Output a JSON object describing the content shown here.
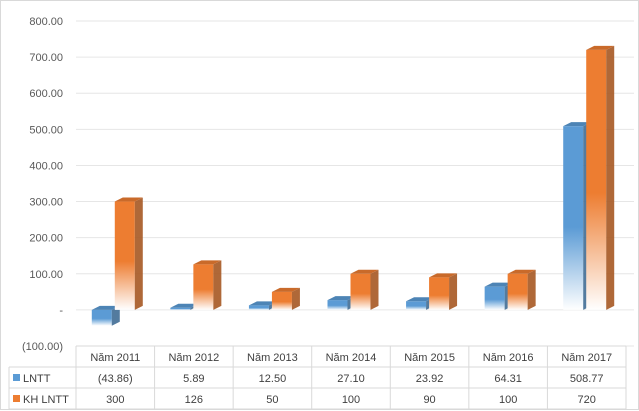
{
  "chart_data": {
    "type": "bar",
    "style": "3d-clustered-column-with-data-table",
    "categories": [
      "Năm 2011",
      "Năm 2012",
      "Năm 2013",
      "Năm 2014",
      "Năm 2015",
      "Năm 2016",
      "Năm 2017"
    ],
    "series": [
      {
        "name": "LNTT",
        "values": [
          -43.86,
          5.89,
          12.5,
          27.1,
          23.92,
          64.31,
          508.77
        ],
        "labels": [
          "(43.86)",
          "5.89",
          "12.50",
          "27.10",
          "23.92",
          "64.31",
          "508.77"
        ],
        "color": "#5b9bd5"
      },
      {
        "name": "KH LNTT",
        "values": [
          300,
          126,
          50,
          100,
          90,
          100,
          720
        ],
        "labels": [
          "300",
          "126",
          "50",
          "100",
          "90",
          "100",
          "720"
        ],
        "color": "#ed7d31"
      }
    ],
    "yticks": [
      {
        "value": 800,
        "label": "800.00"
      },
      {
        "value": 700,
        "label": "700.00"
      },
      {
        "value": 600,
        "label": "600.00"
      },
      {
        "value": 500,
        "label": "500.00"
      },
      {
        "value": 400,
        "label": "400.00"
      },
      {
        "value": 300,
        "label": "300.00"
      },
      {
        "value": 200,
        "label": "200.00"
      },
      {
        "value": 100,
        "label": "100.00"
      },
      {
        "value": 0,
        "label": "-"
      },
      {
        "value": -100,
        "label": "(100.00)"
      }
    ],
    "ylim": [
      -100,
      800
    ],
    "grid": true,
    "legend": "data-table-left"
  }
}
